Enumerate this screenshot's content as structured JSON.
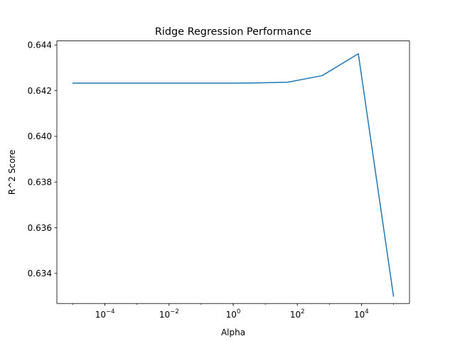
{
  "chart_data": {
    "type": "line",
    "title": "Ridge Regression Performance",
    "xlabel": "Alpha",
    "ylabel": "R^2 Score",
    "xscale": "log",
    "xlim": [
      3.16e-06,
      316000
    ],
    "ylim": [
      0.63268,
      0.64418
    ],
    "grid": false,
    "legend": "none",
    "x_ticks": [
      {
        "base": "10",
        "exponent": "−4",
        "value": 0.0001
      },
      {
        "base": "10",
        "exponent": "−2",
        "value": 0.01
      },
      {
        "base": "10",
        "exponent": "0",
        "value": 1
      },
      {
        "base": "10",
        "exponent": "2",
        "value": 100
      },
      {
        "base": "10",
        "exponent": "4",
        "value": 10000
      }
    ],
    "y_ticks": [
      {
        "label": "0.634",
        "value": 0.634
      },
      {
        "label": "0.636",
        "value": 0.636
      },
      {
        "label": "0.638",
        "value": 0.638
      },
      {
        "label": "0.640",
        "value": 0.64
      },
      {
        "label": "0.642",
        "value": 0.642
      },
      {
        "label": "0.644",
        "value": 0.644
      }
    ],
    "series": [
      {
        "color": "#1f77b4",
        "x": [
          1e-05,
          0.0001,
          0.001,
          0.01,
          0.1,
          1,
          5,
          50,
          600,
          8000,
          100000
        ],
        "y": [
          0.64233,
          0.64233,
          0.64233,
          0.64233,
          0.64233,
          0.64233,
          0.64234,
          0.64237,
          0.64266,
          0.64362,
          0.633
        ]
      }
    ]
  }
}
